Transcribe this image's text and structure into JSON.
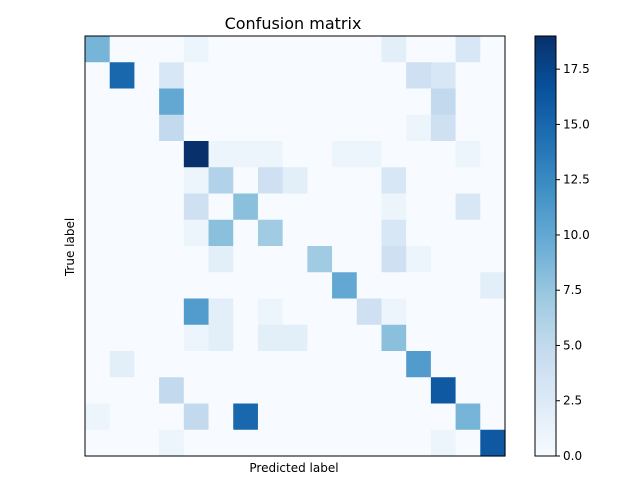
{
  "chart_data": {
    "type": "heatmap",
    "title": "Confusion matrix",
    "xlabel": "Predicted label",
    "ylabel": "True label",
    "x_tick_labels": [],
    "y_tick_labels": [],
    "colormap": "Blues",
    "vmin": 0,
    "vmax": 19,
    "colorbar": {
      "ticks": [
        0.0,
        2.5,
        5.0,
        7.5,
        10.0,
        12.5,
        15.0,
        17.5
      ],
      "tick_labels": [
        "0.0",
        "2.5",
        "5.0",
        "7.5",
        "10.0",
        "12.5",
        "15.0",
        "17.5"
      ]
    },
    "matrix": [
      [
        9,
        0,
        0,
        0,
        1,
        0,
        0,
        0,
        0,
        0,
        0,
        0,
        2,
        0,
        0,
        3,
        0
      ],
      [
        0,
        15,
        0,
        3,
        0,
        0,
        0,
        0,
        0,
        0,
        0,
        0,
        0,
        4,
        3,
        0,
        0
      ],
      [
        0,
        0,
        0,
        10,
        0,
        0,
        0,
        0,
        0,
        0,
        0,
        0,
        0,
        0,
        5,
        0,
        0
      ],
      [
        0,
        0,
        0,
        5,
        0,
        0,
        0,
        0,
        0,
        0,
        0,
        0,
        0,
        1,
        4,
        0,
        0
      ],
      [
        0,
        0,
        0,
        0,
        19,
        1,
        1,
        1,
        0,
        0,
        1,
        1,
        0,
        0,
        0,
        1,
        0
      ],
      [
        0,
        0,
        0,
        0,
        1,
        6,
        0,
        4,
        2,
        0,
        0,
        0,
        3,
        0,
        0,
        0,
        0
      ],
      [
        0,
        0,
        0,
        0,
        4,
        0,
        8,
        0,
        0,
        0,
        0,
        0,
        1,
        0,
        0,
        3,
        0
      ],
      [
        0,
        0,
        0,
        0,
        1,
        8,
        0,
        7,
        0,
        0,
        0,
        0,
        3,
        0,
        0,
        0,
        0
      ],
      [
        0,
        0,
        0,
        0,
        0,
        2,
        0,
        0,
        0,
        7,
        0,
        0,
        4,
        1,
        0,
        0,
        0
      ],
      [
        0,
        0,
        0,
        0,
        0,
        0,
        0,
        0,
        0,
        0,
        10,
        0,
        0,
        0,
        0,
        0,
        2
      ],
      [
        0,
        0,
        0,
        0,
        11,
        2,
        0,
        1,
        0,
        0,
        0,
        4,
        1,
        0,
        0,
        0,
        0
      ],
      [
        0,
        0,
        0,
        0,
        1,
        2,
        0,
        2,
        2,
        0,
        0,
        0,
        8,
        0,
        0,
        0,
        0
      ],
      [
        0,
        2,
        0,
        0,
        0,
        0,
        0,
        0,
        0,
        0,
        0,
        0,
        0,
        11,
        0,
        0,
        0
      ],
      [
        0,
        0,
        0,
        5,
        0,
        0,
        0,
        0,
        0,
        0,
        0,
        0,
        0,
        0,
        16,
        0,
        0
      ],
      [
        1,
        0,
        0,
        0,
        5,
        0,
        15,
        0,
        0,
        0,
        0,
        0,
        0,
        0,
        0,
        9,
        0
      ],
      [
        0,
        0,
        0,
        1,
        0,
        0,
        0,
        0,
        0,
        0,
        0,
        0,
        0,
        0,
        1,
        0,
        16
      ]
    ]
  }
}
